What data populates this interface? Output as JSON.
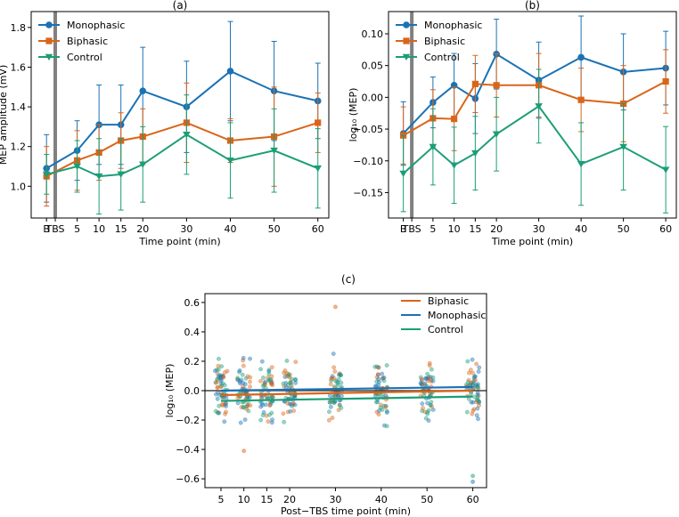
{
  "colors": {
    "mono": "#1a72b5",
    "bi": "#d9651a",
    "ctrl": "#1b9e77",
    "tbs": "#808080"
  },
  "chart_data": [
    {
      "id": "a",
      "type": "line",
      "title": "(a)",
      "xlabel": "Time point (min)",
      "ylabel": "MEP amplitude (mV)",
      "categories": [
        "B",
        "TBS",
        "5",
        "10",
        "15",
        "20",
        "30",
        "40",
        "50",
        "60"
      ],
      "x": [
        -2,
        0,
        5,
        10,
        15,
        20,
        30,
        40,
        50,
        60
      ],
      "ylim": [
        0.84,
        1.88
      ],
      "yticks": [
        1.0,
        1.2,
        1.4,
        1.6,
        1.8
      ],
      "ytick_labels": [
        "1.0",
        "1.2",
        "1.4",
        "1.6",
        "1.8"
      ],
      "legend": [
        "Monophasic",
        "Biphasic",
        "Control"
      ],
      "series": [
        {
          "name": "Monophasic",
          "x": [
            -2,
            5,
            10,
            15,
            20,
            30,
            40,
            50,
            60
          ],
          "values": [
            1.09,
            1.18,
            1.31,
            1.31,
            1.48,
            1.4,
            1.58,
            1.48,
            1.43
          ],
          "err": [
            0.17,
            0.15,
            0.2,
            0.2,
            0.22,
            0.23,
            0.25,
            0.25,
            0.19
          ]
        },
        {
          "name": "Biphasic",
          "x": [
            -2,
            5,
            10,
            15,
            20,
            30,
            40,
            50,
            60
          ],
          "values": [
            1.05,
            1.13,
            1.17,
            1.23,
            1.25,
            1.32,
            1.23,
            1.25,
            1.32
          ],
          "err": [
            0.15,
            0.15,
            0.14,
            0.14,
            0.14,
            0.2,
            0.11,
            0.25,
            0.15
          ]
        },
        {
          "name": "Control",
          "x": [
            -2,
            5,
            10,
            15,
            20,
            30,
            40,
            50,
            60
          ],
          "values": [
            1.06,
            1.1,
            1.05,
            1.06,
            1.11,
            1.26,
            1.13,
            1.18,
            1.09
          ],
          "err": [
            0.1,
            0.13,
            0.19,
            0.18,
            0.19,
            0.2,
            0.19,
            0.21,
            0.2
          ]
        }
      ]
    },
    {
      "id": "b",
      "type": "line",
      "title": "(b)",
      "xlabel": "Time point (min)",
      "ylabel": "log₁₀ (MEP)",
      "categories": [
        "B",
        "TBS",
        "5",
        "10",
        "15",
        "20",
        "30",
        "40",
        "50",
        "60"
      ],
      "x": [
        -2,
        0,
        5,
        10,
        15,
        20,
        30,
        40,
        50,
        60
      ],
      "ylim": [
        -0.19,
        0.135
      ],
      "yticks": [
        -0.15,
        -0.1,
        -0.05,
        0.0,
        0.05,
        0.1
      ],
      "ytick_labels": [
        "−0.15",
        "−0.10",
        "−0.05",
        "0.00",
        "0.05",
        "0.10"
      ],
      "legend": [
        "Monophasic",
        "Biphasic",
        "Control"
      ],
      "series": [
        {
          "name": "Monophasic",
          "x": [
            -2,
            5,
            10,
            15,
            20,
            30,
            40,
            50,
            60
          ],
          "values": [
            -0.057,
            -0.008,
            0.019,
            -0.002,
            0.068,
            0.027,
            0.063,
            0.04,
            0.046
          ],
          "err": [
            0.05,
            0.04,
            0.05,
            0.055,
            0.055,
            0.06,
            0.065,
            0.06,
            0.058
          ]
        },
        {
          "name": "Biphasic",
          "x": [
            -2,
            5,
            10,
            15,
            20,
            30,
            40,
            50,
            60
          ],
          "values": [
            -0.06,
            -0.033,
            -0.034,
            0.021,
            0.019,
            0.019,
            -0.004,
            -0.01,
            0.025
          ],
          "err": [
            0.045,
            0.045,
            0.05,
            0.045,
            0.05,
            0.05,
            0.05,
            0.06,
            0.05
          ]
        },
        {
          "name": "Control",
          "x": [
            -2,
            5,
            10,
            15,
            20,
            30,
            40,
            50,
            60
          ],
          "values": [
            -0.12,
            -0.078,
            -0.107,
            -0.088,
            -0.058,
            -0.014,
            -0.105,
            -0.078,
            -0.114
          ],
          "err": [
            0.06,
            0.06,
            0.06,
            0.058,
            0.058,
            0.058,
            0.065,
            0.068,
            0.068
          ]
        }
      ]
    },
    {
      "id": "c",
      "type": "scatter",
      "title": "(c)",
      "xlabel": "Post−TBS time point (min)",
      "ylabel": "log₁₀ (MEP)",
      "categories": [
        "5",
        "10",
        "15",
        "20",
        "30",
        "40",
        "50",
        "60"
      ],
      "x": [
        5,
        10,
        15,
        20,
        30,
        40,
        50,
        60
      ],
      "ylim": [
        -0.66,
        0.66
      ],
      "yticks": [
        -0.6,
        -0.4,
        -0.2,
        0.0,
        0.2,
        0.4,
        0.6
      ],
      "ytick_labels": [
        "−0.6",
        "−0.4",
        "−0.2",
        "0.0",
        "0.2",
        "0.4",
        "0.6"
      ],
      "legend": [
        "Biphasic",
        "Monophasic",
        "Control"
      ],
      "fit_lines": [
        {
          "name": "Monophasic",
          "x": [
            5,
            60
          ],
          "y": [
            0.0,
            0.025
          ]
        },
        {
          "name": "Biphasic",
          "x": [
            5,
            60
          ],
          "y": [
            -0.03,
            0.0
          ]
        },
        {
          "name": "Control",
          "x": [
            5,
            60
          ],
          "y": [
            -0.07,
            -0.04
          ]
        }
      ],
      "points_per_time": 60,
      "spread": 0.17,
      "outliers": [
        {
          "x": 30,
          "y": 0.57,
          "name": "Biphasic"
        },
        {
          "x": 10,
          "y": -0.41,
          "name": "Biphasic"
        },
        {
          "x": 60,
          "y": -0.62,
          "name": "Monophasic"
        },
        {
          "x": 60,
          "y": -0.58,
          "name": "Control"
        }
      ]
    }
  ]
}
